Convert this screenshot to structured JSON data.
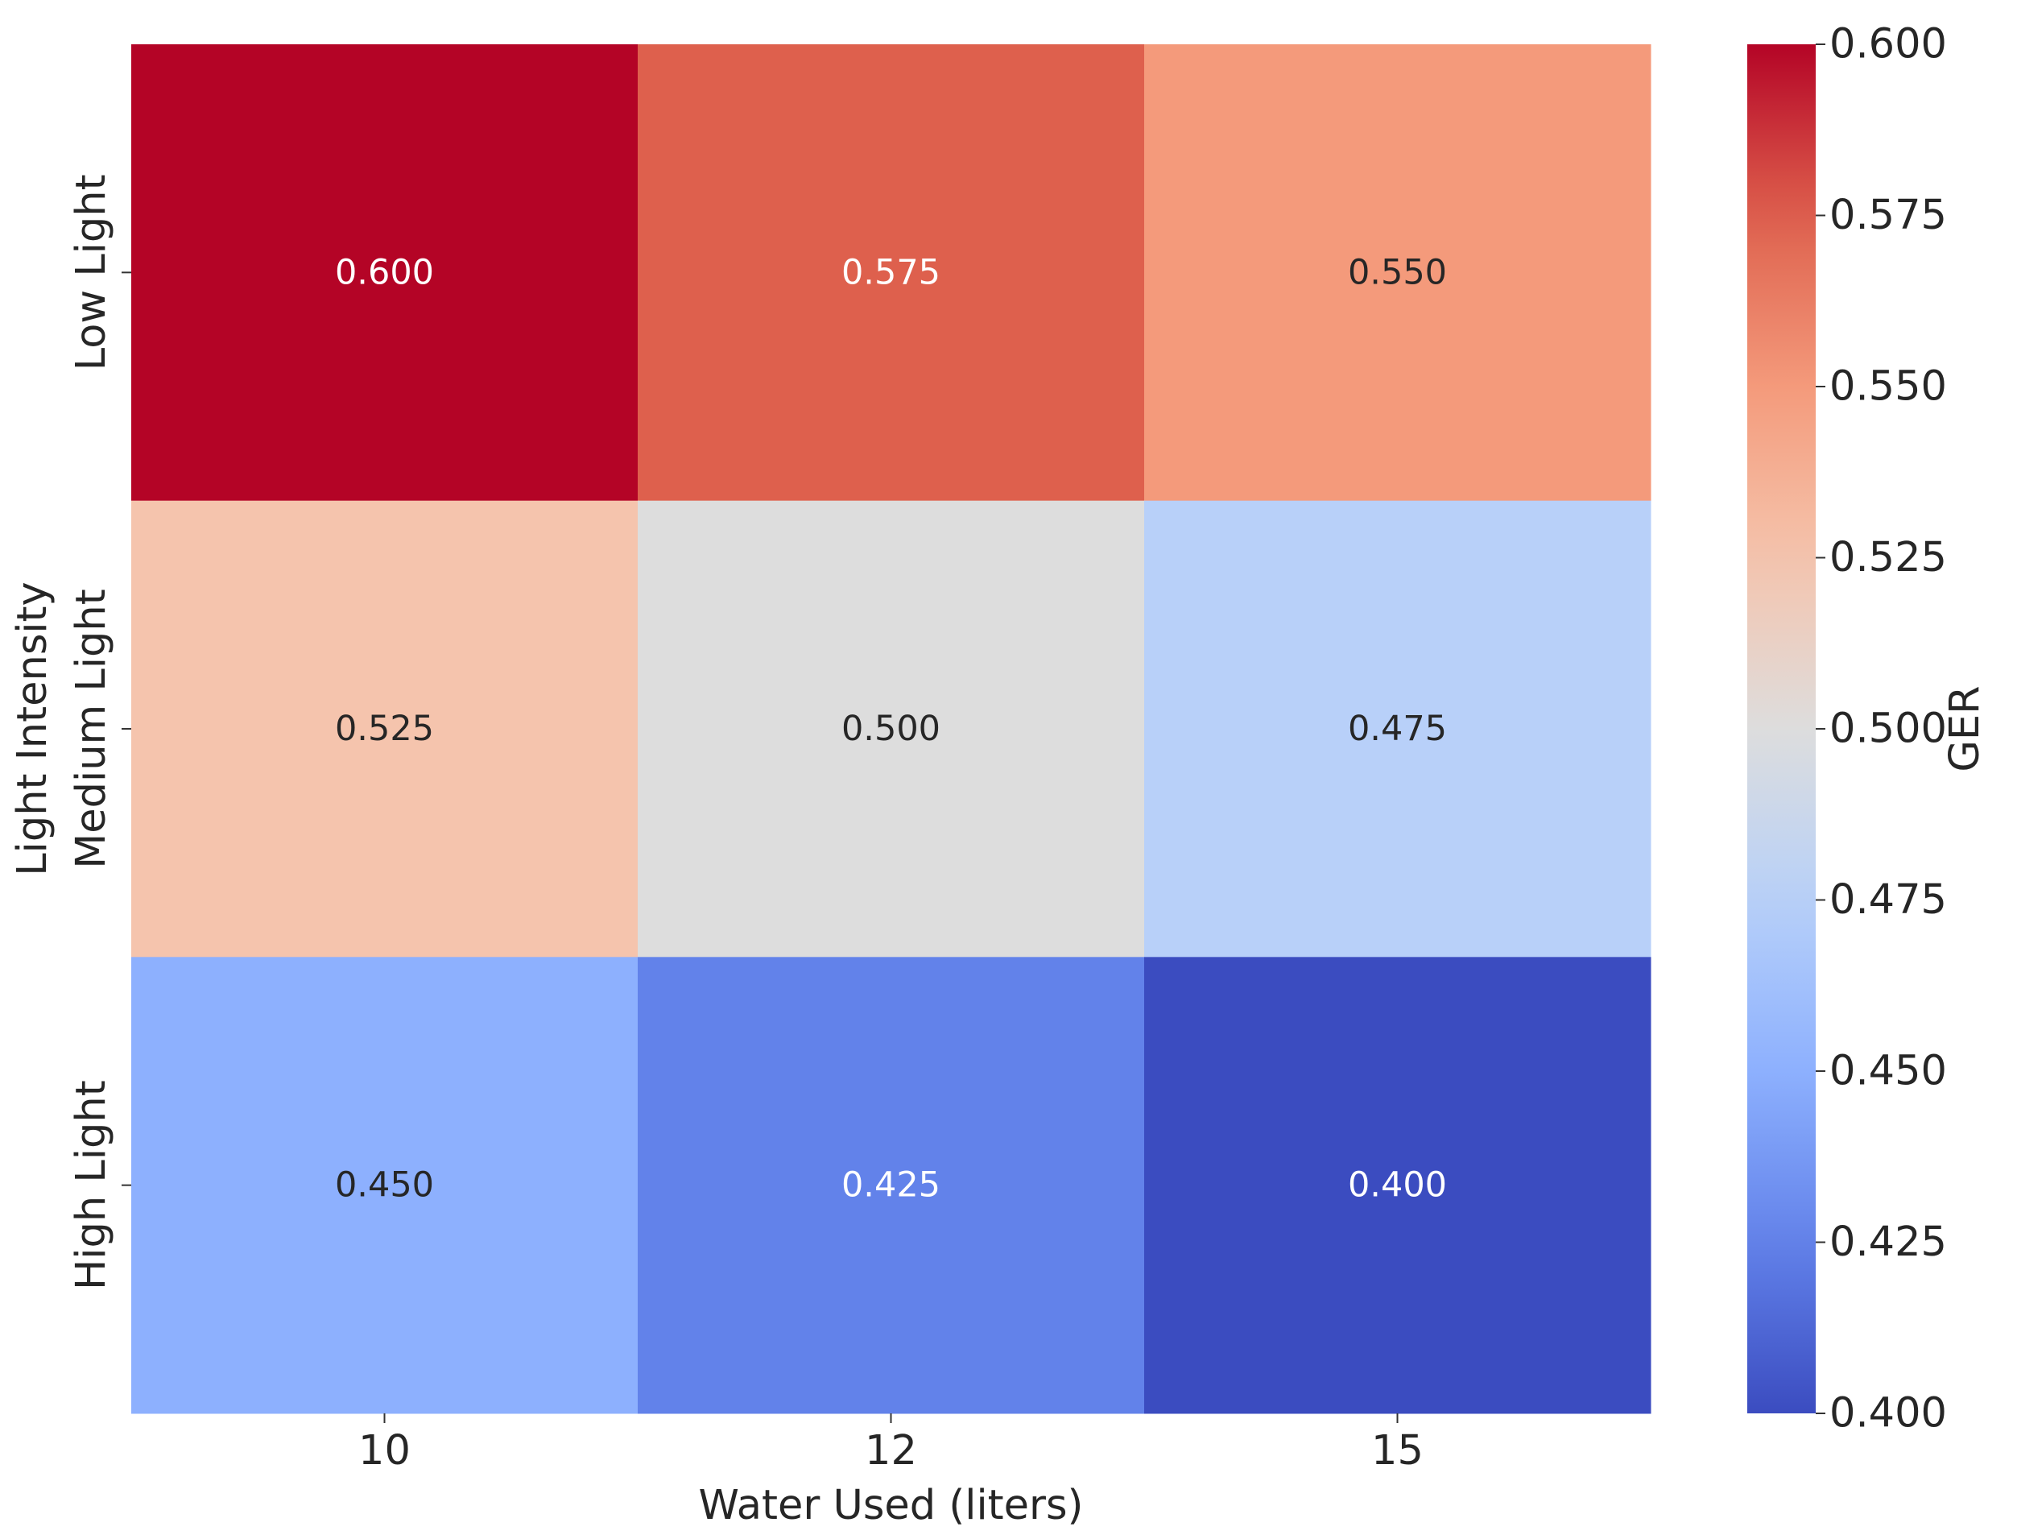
{
  "chart_data": {
    "type": "heatmap",
    "title": "",
    "xlabel": "Water Used (liters)",
    "ylabel": "Light Intensity",
    "x_categories": [
      "10",
      "12",
      "15"
    ],
    "y_categories": [
      "Low Light",
      "Medium Light",
      "High Light"
    ],
    "values": [
      [
        0.6,
        0.575,
        0.55
      ],
      [
        0.525,
        0.5,
        0.475
      ],
      [
        0.45,
        0.425,
        0.4
      ]
    ],
    "cell_label_format": "3 decimals",
    "colormap": "coolwarm",
    "colorbar": {
      "label": "GER",
      "range": [
        0.4,
        0.6
      ],
      "ticks": [
        "0.400",
        "0.425",
        "0.450",
        "0.475",
        "0.500",
        "0.525",
        "0.550",
        "0.575",
        "0.600"
      ],
      "position": "right"
    },
    "grid": false
  }
}
